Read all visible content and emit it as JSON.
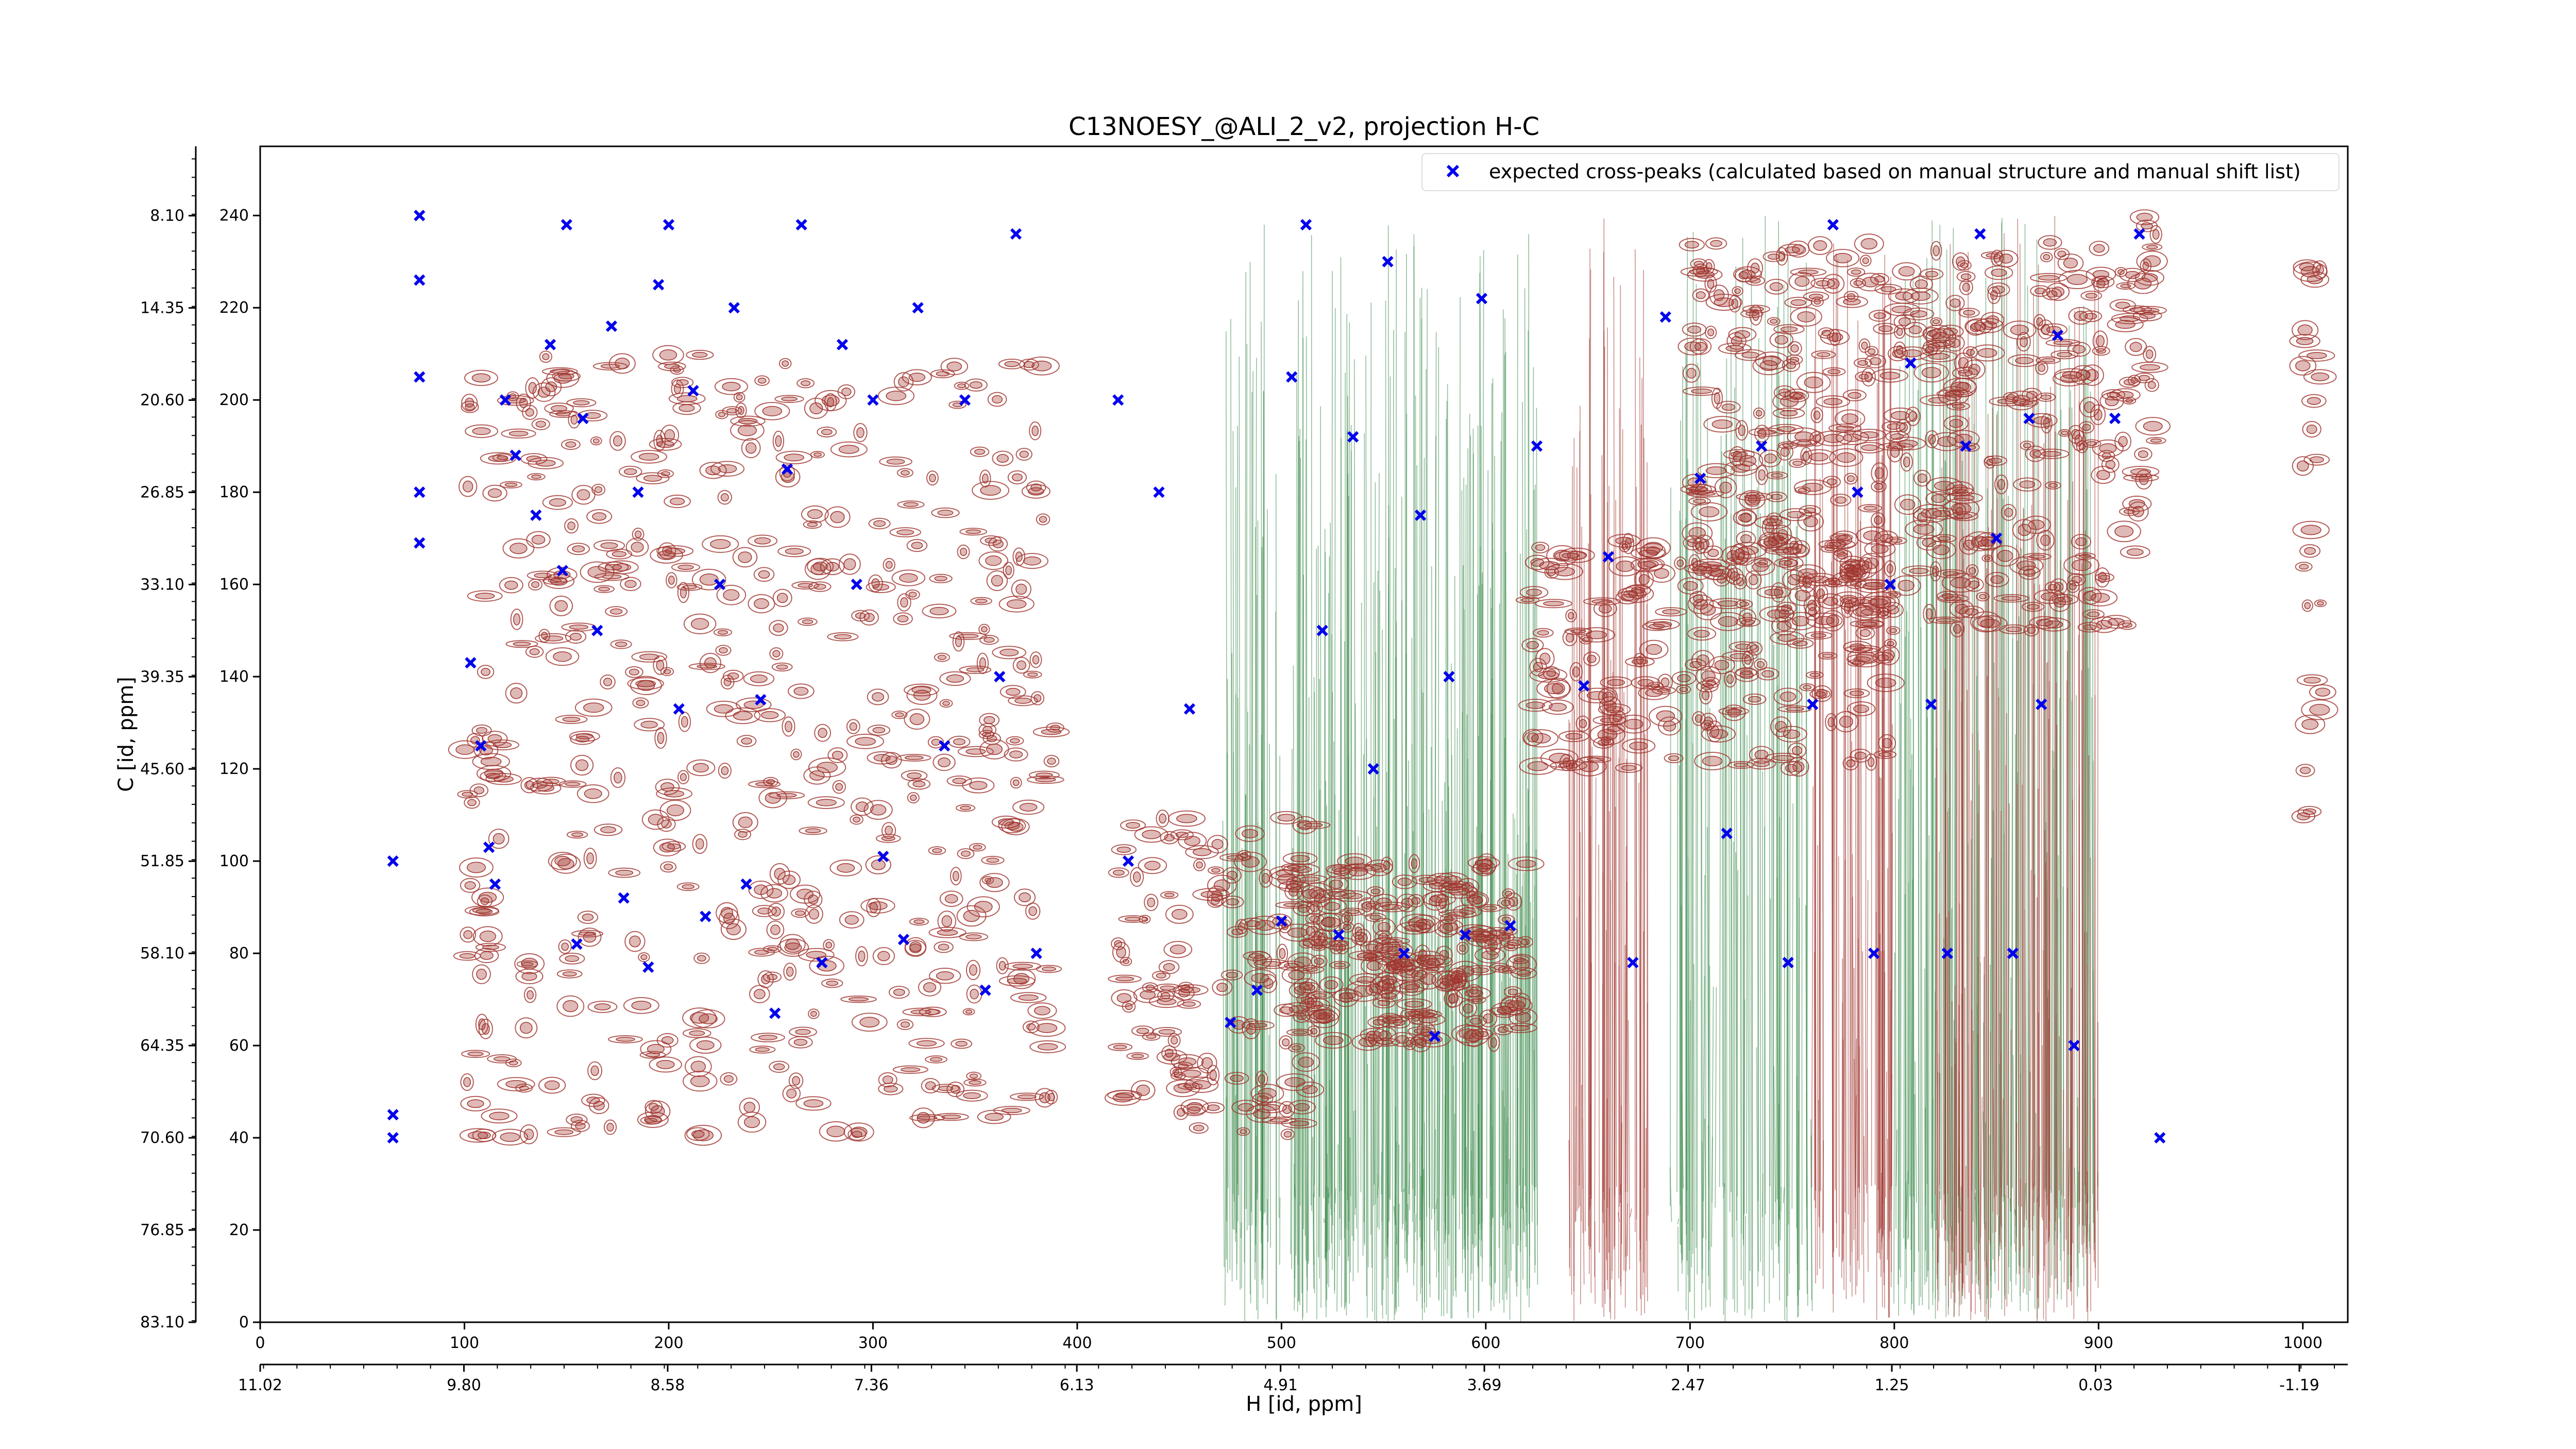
{
  "chart_data": {
    "type": "scatter",
    "title": "C13NOESY_@ALI_2_v2, projection H-C",
    "xlabel": "H [id, ppm]",
    "ylabel": "C [id, ppm]",
    "x_index_ticks": [
      "0",
      "100",
      "200",
      "300",
      "400",
      "500",
      "600",
      "700",
      "800",
      "900",
      "1000"
    ],
    "x_ppm_ticks": [
      "11.02",
      "9.80",
      "8.58",
      "7.36",
      "6.13",
      "4.91",
      "3.69",
      "2.47",
      "1.25",
      "0.03",
      "-1.19"
    ],
    "y_index_ticks": [
      "0",
      "20",
      "40",
      "60",
      "80",
      "100",
      "120",
      "140",
      "160",
      "180",
      "200",
      "220",
      "240"
    ],
    "y_ppm_ticks": [
      "83.10",
      "76.85",
      "70.60",
      "64.35",
      "58.10",
      "51.85",
      "45.60",
      "39.35",
      "33.10",
      "26.85",
      "20.60",
      "14.35",
      "8.10"
    ],
    "xlim": [
      0,
      1022
    ],
    "ylim": [
      0,
      255
    ],
    "h_ppm_range": [
      11.02,
      -1.48
    ],
    "c_ppm_range": [
      83.1,
      3.4
    ],
    "grid": false,
    "legend_position": "top-right",
    "legend": [
      "expected cross-peaks (calculated based on manual structure and manual shift list)"
    ],
    "colors": {
      "expected_marker": "#0000ee",
      "positive_contour": "#a0362f",
      "negative_contour": "#3a8a4a"
    },
    "series": [
      {
        "name": "expected cross-peaks (calculated based on manual structure and manual shift list)",
        "marker": "x",
        "points": [
          [
            65,
            40
          ],
          [
            65,
            45
          ],
          [
            65,
            100
          ],
          [
            78,
            240
          ],
          [
            78,
            226
          ],
          [
            78,
            205
          ],
          [
            78,
            180
          ],
          [
            78,
            169
          ],
          [
            103,
            143
          ],
          [
            108,
            125
          ],
          [
            112,
            103
          ],
          [
            115,
            95
          ],
          [
            120,
            200
          ],
          [
            125,
            188
          ],
          [
            135,
            175
          ],
          [
            142,
            212
          ],
          [
            148,
            163
          ],
          [
            150,
            238
          ],
          [
            155,
            82
          ],
          [
            158,
            196
          ],
          [
            165,
            150
          ],
          [
            172,
            216
          ],
          [
            178,
            92
          ],
          [
            185,
            180
          ],
          [
            190,
            77
          ],
          [
            195,
            225
          ],
          [
            200,
            238
          ],
          [
            205,
            133
          ],
          [
            212,
            202
          ],
          [
            218,
            88
          ],
          [
            225,
            160
          ],
          [
            232,
            220
          ],
          [
            238,
            95
          ],
          [
            245,
            135
          ],
          [
            252,
            67
          ],
          [
            258,
            185
          ],
          [
            265,
            238
          ],
          [
            275,
            78
          ],
          [
            285,
            212
          ],
          [
            292,
            160
          ],
          [
            300,
            200
          ],
          [
            305,
            101
          ],
          [
            315,
            83
          ],
          [
            322,
            220
          ],
          [
            335,
            125
          ],
          [
            345,
            200
          ],
          [
            355,
            72
          ],
          [
            362,
            140
          ],
          [
            370,
            236
          ],
          [
            380,
            80
          ],
          [
            420,
            200
          ],
          [
            425,
            100
          ],
          [
            440,
            180
          ],
          [
            455,
            133
          ],
          [
            475,
            65
          ],
          [
            488,
            72
          ],
          [
            500,
            87
          ],
          [
            505,
            205
          ],
          [
            512,
            238
          ],
          [
            520,
            150
          ],
          [
            528,
            84
          ],
          [
            535,
            192
          ],
          [
            545,
            120
          ],
          [
            552,
            230
          ],
          [
            560,
            80
          ],
          [
            568,
            175
          ],
          [
            575,
            62
          ],
          [
            582,
            140
          ],
          [
            590,
            84
          ],
          [
            598,
            222
          ],
          [
            612,
            86
          ],
          [
            625,
            190
          ],
          [
            648,
            138
          ],
          [
            660,
            166
          ],
          [
            672,
            78
          ],
          [
            688,
            218
          ],
          [
            705,
            183
          ],
          [
            718,
            106
          ],
          [
            735,
            190
          ],
          [
            748,
            78
          ],
          [
            760,
            134
          ],
          [
            770,
            238
          ],
          [
            782,
            180
          ],
          [
            790,
            80
          ],
          [
            798,
            160
          ],
          [
            808,
            208
          ],
          [
            818,
            134
          ],
          [
            826,
            80
          ],
          [
            835,
            190
          ],
          [
            842,
            236
          ],
          [
            850,
            170
          ],
          [
            858,
            80
          ],
          [
            866,
            196
          ],
          [
            872,
            134
          ],
          [
            880,
            214
          ],
          [
            888,
            60
          ],
          [
            908,
            196
          ],
          [
            920,
            236
          ],
          [
            930,
            40
          ]
        ]
      }
    ]
  }
}
